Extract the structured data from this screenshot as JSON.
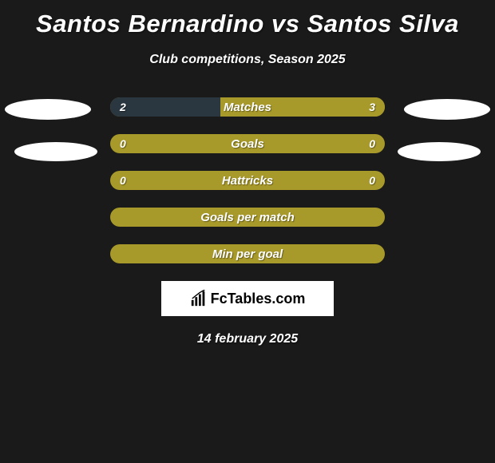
{
  "title": "Santos Bernardino vs Santos Silva",
  "subtitle": "Club competitions, Season 2025",
  "date": "14 february 2025",
  "branding_text": "FcTables.com",
  "colors": {
    "background": "#1a1a1a",
    "bar_olive": "#a89a2a",
    "bar_darkblue": "#2a3640",
    "white": "#ffffff",
    "text": "#ffffff"
  },
  "stat_rows": [
    {
      "label": "Matches",
      "left_value": "2",
      "right_value": "3",
      "left_fill_pct": 40,
      "right_fill_pct": 60,
      "left_color": "#2a3640",
      "right_color": "#a89a2a",
      "show_values": true
    },
    {
      "label": "Goals",
      "left_value": "0",
      "right_value": "0",
      "left_fill_pct": 0,
      "right_fill_pct": 0,
      "left_color": "#2a3640",
      "right_color": "#a89a2a",
      "bg_color": "#a89a2a",
      "show_values": true
    },
    {
      "label": "Hattricks",
      "left_value": "0",
      "right_value": "0",
      "left_fill_pct": 0,
      "right_fill_pct": 0,
      "left_color": "#2a3640",
      "right_color": "#a89a2a",
      "bg_color": "#a89a2a",
      "show_values": true
    },
    {
      "label": "Goals per match",
      "left_value": "",
      "right_value": "",
      "left_fill_pct": 0,
      "right_fill_pct": 0,
      "left_color": "#2a3640",
      "right_color": "#a89a2a",
      "bg_color": "#a89a2a",
      "show_values": false
    },
    {
      "label": "Min per goal",
      "left_value": "",
      "right_value": "",
      "left_fill_pct": 0,
      "right_fill_pct": 0,
      "left_color": "#2a3640",
      "right_color": "#a89a2a",
      "bg_color": "#a89a2a",
      "show_values": false
    }
  ]
}
